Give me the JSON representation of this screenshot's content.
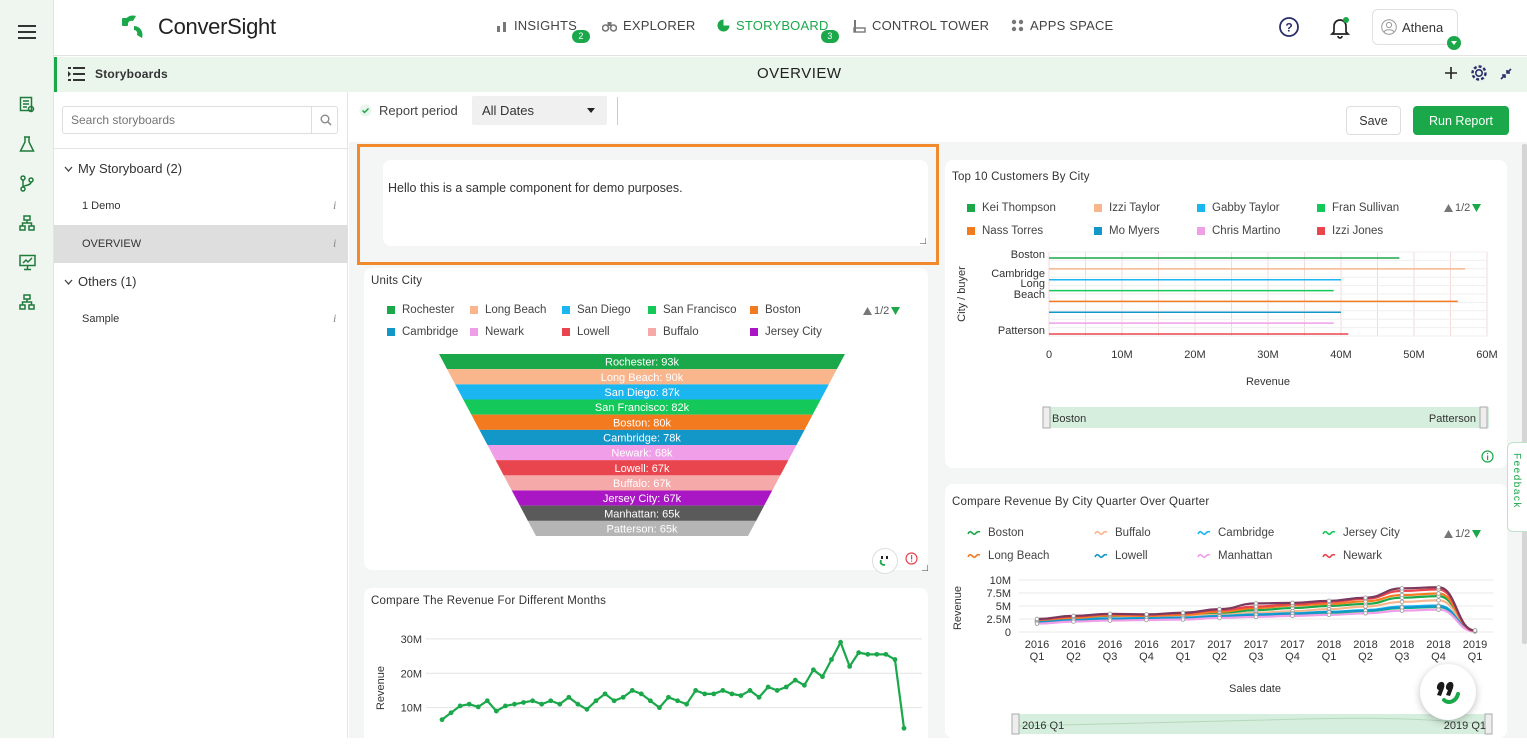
{
  "leftbar": {
    "icons": [
      "menu-icon",
      "report-icon",
      "flask-icon",
      "branch-icon",
      "org-chart-icon",
      "presentation-icon",
      "hierarchy-icon"
    ]
  },
  "topnav": {
    "brand": "ConverSight",
    "items": [
      {
        "label": "INSIGHTS",
        "badge": "2",
        "icon": "bar-chart-icon"
      },
      {
        "label": "EXPLORER",
        "badge": "",
        "icon": "binoculars-icon"
      },
      {
        "label": "STORYBOARD",
        "badge": "3",
        "icon": "pie-icon"
      },
      {
        "label": "CONTROL TOWER",
        "badge": "",
        "icon": "tower-icon"
      },
      {
        "label": "APPS SPACE",
        "badge": "",
        "icon": "grid-icon"
      }
    ],
    "user": "Athena"
  },
  "subbar": {
    "left_label": "Storyboards",
    "title": "OVERVIEW"
  },
  "sidebar": {
    "search_placeholder": "Search storyboards",
    "groups": [
      {
        "label": "My Storyboard (2)",
        "items": [
          "1 Demo",
          "OVERVIEW"
        ]
      },
      {
        "label": "Others (1)",
        "items": [
          "Sample"
        ]
      }
    ],
    "selected": "OVERVIEW"
  },
  "toolbar": {
    "report_period_label": "Report period",
    "period_value": "All Dates",
    "save_label": "Save",
    "run_label": "Run Report"
  },
  "text_component": {
    "text": "Hello this is a sample component for demo purposes."
  },
  "colors": {
    "accent": "#1aa84a",
    "highlight": "#f08a2c"
  },
  "pager": "1/2",
  "feedback_label": "Feedback",
  "chart_data": [
    {
      "title": "Units City",
      "type": "funnel",
      "categories": [
        "Rochester",
        "Long Beach",
        "San Diego",
        "San Francisco",
        "Boston",
        "Cambridge",
        "Newark",
        "Lowell",
        "Buffalo",
        "Jersey City",
        "Manhattan",
        "Patterson"
      ],
      "value_labels": [
        "93k",
        "90k",
        "87k",
        "82k",
        "80k",
        "78k",
        "68k",
        "67k",
        "67k",
        "67k",
        "65k",
        "65k"
      ],
      "values": [
        93000,
        90000,
        87000,
        82000,
        80000,
        78000,
        68000,
        67000,
        67000,
        67000,
        65000,
        65000
      ],
      "legend": [
        "Rochester",
        "Long Beach",
        "San Diego",
        "San Francisco",
        "Boston",
        "Cambridge",
        "Newark",
        "Lowell",
        "Buffalo",
        "Jersey City"
      ],
      "colors": [
        "#1aa84a",
        "#f9b58c",
        "#1bb6f0",
        "#14c95a",
        "#f37a1f",
        "#1396c8",
        "#f09ee8",
        "#e8454e",
        "#f5a9a9",
        "#a916c4",
        "#5a5a5a",
        "#b5b5b5"
      ]
    },
    {
      "title": "Top 10 Customers By City",
      "type": "bar",
      "orientation": "horizontal",
      "xlabel": "Revenue",
      "ylabel": "City / buyer",
      "xticks": [
        "0",
        "10M",
        "20M",
        "30M",
        "40M",
        "50M",
        "60M"
      ],
      "xlim": [
        0,
        60000000
      ],
      "yticks": [
        "Boston",
        "Cambridge",
        "Long Beach",
        "Patterson"
      ],
      "series": [
        {
          "name": "Kei Thompson",
          "color": "#1aa84a",
          "value": 48000000
        },
        {
          "name": "Izzi Taylor",
          "color": "#f9b58c",
          "value": 57000000
        },
        {
          "name": "Gabby Taylor",
          "color": "#1bb6f0",
          "value": 40000000
        },
        {
          "name": "Fran Sullivan",
          "color": "#14c95a",
          "value": 39000000
        },
        {
          "name": "Nass Torres",
          "color": "#f37a1f",
          "value": 56000000
        },
        {
          "name": "Mo Myers",
          "color": "#1396c8",
          "value": 40000000
        },
        {
          "name": "Chris Martino",
          "color": "#f09ee8",
          "value": 39000000
        },
        {
          "name": "Izzi Jones",
          "color": "#e8454e",
          "value": 41000000
        }
      ],
      "slider_labels": [
        "Boston",
        "Patterson"
      ]
    },
    {
      "title": "Compare Revenue By City Quarter Over Quarter",
      "type": "line",
      "xlabel": "Sales date",
      "ylabel": "Revenue",
      "yticks": [
        "10M",
        "7.5M",
        "5M",
        "2.5M",
        "0"
      ],
      "ylim": [
        0,
        10000000
      ],
      "categories": [
        "2016 Q1",
        "2016 Q2",
        "2016 Q3",
        "2016 Q4",
        "2017 Q1",
        "2017 Q2",
        "2017 Q3",
        "2017 Q4",
        "2018 Q1",
        "2018 Q2",
        "2018 Q3",
        "2018 Q4",
        "2019 Q1"
      ],
      "series": [
        {
          "name": "Boston",
          "color": "#1aa84a",
          "values": [
            2.3,
            2.6,
            2.9,
            3.0,
            3.1,
            3.6,
            4.2,
            4.6,
            5.0,
            5.4,
            6.6,
            6.9,
            0.2
          ]
        },
        {
          "name": "Buffalo",
          "color": "#f9b58c",
          "values": [
            2.0,
            2.4,
            2.7,
            2.9,
            3.0,
            3.3,
            3.7,
            4.0,
            4.4,
            4.9,
            5.8,
            6.1,
            0.1
          ]
        },
        {
          "name": "Cambridge",
          "color": "#1bb6f0",
          "values": [
            2.2,
            2.8,
            2.6,
            2.7,
            2.8,
            3.1,
            3.4,
            3.6,
            3.9,
            4.2,
            4.9,
            5.1,
            0.1
          ]
        },
        {
          "name": "Jersey City",
          "color": "#14c95a",
          "values": [
            1.8,
            2.1,
            2.4,
            2.5,
            2.6,
            2.9,
            3.2,
            3.3,
            3.6,
            4.0,
            4.6,
            4.8,
            0.2
          ]
        },
        {
          "name": "Long Beach",
          "color": "#f37a1f",
          "values": [
            2.1,
            2.7,
            3.2,
            3.1,
            3.3,
            3.9,
            4.6,
            5.1,
            5.4,
            5.9,
            7.1,
            7.4,
            0.3
          ]
        },
        {
          "name": "Lowell",
          "color": "#1396c8",
          "values": [
            1.9,
            2.3,
            2.5,
            2.6,
            2.7,
            3.0,
            3.3,
            3.5,
            3.8,
            4.1,
            4.7,
            4.9,
            0.1
          ]
        },
        {
          "name": "Manhattan",
          "color": "#f09ee8",
          "values": [
            1.6,
            2.0,
            2.2,
            2.3,
            2.4,
            2.7,
            2.9,
            3.1,
            3.3,
            3.6,
            4.1,
            4.3,
            0.1
          ]
        },
        {
          "name": "Newark",
          "color": "#e8454e",
          "values": [
            2.4,
            3.0,
            3.4,
            3.3,
            3.6,
            4.2,
            4.9,
            5.3,
            5.8,
            6.4,
            7.9,
            8.2,
            0.2
          ]
        },
        {
          "name": "",
          "color": "#7a3a5e",
          "values": [
            2.5,
            3.1,
            3.5,
            3.4,
            3.7,
            4.4,
            5.5,
            5.6,
            6.0,
            6.6,
            8.4,
            8.6,
            0.3
          ]
        }
      ],
      "slider_labels": [
        "2016 Q1",
        "2019 Q1"
      ]
    },
    {
      "title": "Compare The Revenue For Different Months",
      "type": "line",
      "ylabel": "Revenue",
      "yticks": [
        "30M",
        "20M",
        "10M"
      ],
      "ylim": [
        0,
        32000000
      ],
      "series": [
        {
          "name": "",
          "color": "#1aa84a",
          "values": [
            6.5,
            8.5,
            10.5,
            11,
            10.2,
            12,
            9,
            10.5,
            11,
            11.5,
            12,
            11,
            12,
            11,
            13,
            11,
            9.5,
            12,
            14,
            12,
            13,
            15,
            14,
            12,
            10,
            13,
            12,
            11,
            15,
            14,
            14,
            15,
            14,
            13.5,
            15,
            13,
            16,
            15,
            16,
            18,
            16.5,
            21,
            19,
            24,
            29,
            22,
            26,
            25.5,
            25.5,
            25.5,
            24,
            4
          ]
        }
      ]
    }
  ]
}
